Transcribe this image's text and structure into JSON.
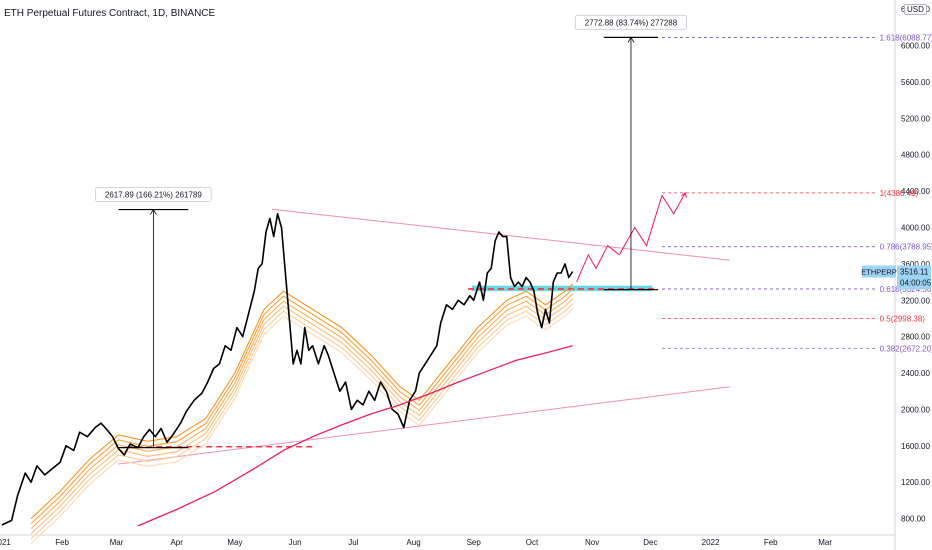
{
  "header": {
    "title": "ETH Perpetual Futures Contract, 1D, BINANCE",
    "currency": "USD"
  },
  "price_tag": {
    "symbol": "ETHPERP",
    "price": "3516.11",
    "countdown": "04:00:05",
    "color": "#9fd3f5"
  },
  "chart_data": {
    "type": "line",
    "title": "ETH Perpetual Futures Contract, 1D, BINANCE",
    "ylabel": "USD",
    "ylim": [
      620,
      6500
    ],
    "y_ticks": [
      800,
      1200,
      1600,
      2000,
      2400,
      2800,
      3200,
      3600,
      4000,
      4400,
      4800,
      5200,
      5600,
      6000,
      6400
    ],
    "y_tick_labels": [
      "800.00",
      "1200.00",
      "1600.00",
      "2000.00",
      "2400.00",
      "2800.00",
      "3200.00",
      "3600.00",
      "4000.00",
      "4400.00",
      "4800.00",
      "5200.00",
      "5600.00",
      "6000.00",
      "6400.00"
    ],
    "x_tick_labels": [
      "2021",
      "Feb",
      "Mar",
      "Apr",
      "May",
      "Jun",
      "Jul",
      "Aug",
      "Sep",
      "Oct",
      "Nov",
      "Dec",
      "2022",
      "Feb",
      "Mar"
    ],
    "x_tick_days": [
      0,
      31,
      59,
      90,
      120,
      151,
      181,
      212,
      243,
      273,
      304,
      334,
      365,
      396,
      424
    ],
    "xlim_days": [
      -1,
      460
    ],
    "grid": false,
    "series": [
      {
        "role": "price",
        "color": "#000000",
        "points": [
          [
            0,
            730
          ],
          [
            5,
            780
          ],
          [
            8,
            1050
          ],
          [
            12,
            1300
          ],
          [
            15,
            1200
          ],
          [
            18,
            1380
          ],
          [
            22,
            1280
          ],
          [
            26,
            1350
          ],
          [
            30,
            1420
          ],
          [
            33,
            1600
          ],
          [
            37,
            1550
          ],
          [
            40,
            1750
          ],
          [
            44,
            1700
          ],
          [
            48,
            1800
          ],
          [
            51,
            1850
          ],
          [
            54,
            1780
          ],
          [
            57,
            1700
          ],
          [
            60,
            1570
          ],
          [
            63,
            1500
          ],
          [
            66,
            1620
          ],
          [
            70,
            1580
          ],
          [
            73,
            1700
          ],
          [
            76,
            1780
          ],
          [
            79,
            1700
          ],
          [
            82,
            1790
          ],
          [
            85,
            1640
          ],
          [
            88,
            1720
          ],
          [
            92,
            1850
          ],
          [
            95,
            1980
          ],
          [
            99,
            2100
          ],
          [
            103,
            2180
          ],
          [
            106,
            2300
          ],
          [
            109,
            2450
          ],
          [
            112,
            2500
          ],
          [
            115,
            2700
          ],
          [
            118,
            2650
          ],
          [
            121,
            2900
          ],
          [
            124,
            2800
          ],
          [
            127,
            3050
          ],
          [
            130,
            3300
          ],
          [
            132,
            3550
          ],
          [
            134,
            3600
          ],
          [
            136,
            3950
          ],
          [
            138,
            4100
          ],
          [
            140,
            3900
          ],
          [
            142,
            4150
          ],
          [
            144,
            4000
          ],
          [
            146,
            3500
          ],
          [
            148,
            3000
          ],
          [
            150,
            2500
          ],
          [
            152,
            2650
          ],
          [
            154,
            2500
          ],
          [
            156,
            2900
          ],
          [
            158,
            2650
          ],
          [
            160,
            2700
          ],
          [
            163,
            2500
          ],
          [
            166,
            2700
          ],
          [
            168,
            2600
          ],
          [
            171,
            2400
          ],
          [
            174,
            2200
          ],
          [
            177,
            2300
          ],
          [
            180,
            2000
          ],
          [
            183,
            2100
          ],
          [
            186,
            2050
          ],
          [
            189,
            2200
          ],
          [
            192,
            2100
          ],
          [
            195,
            2300
          ],
          [
            198,
            2200
          ],
          [
            201,
            2000
          ],
          [
            204,
            1950
          ],
          [
            207,
            1800
          ],
          [
            210,
            2100
          ],
          [
            213,
            2200
          ],
          [
            215,
            2400
          ],
          [
            218,
            2500
          ],
          [
            221,
            2600
          ],
          [
            224,
            2700
          ],
          [
            226,
            2950
          ],
          [
            229,
            3150
          ],
          [
            232,
            3100
          ],
          [
            235,
            3200
          ],
          [
            238,
            3150
          ],
          [
            241,
            3250
          ],
          [
            243,
            3200
          ],
          [
            246,
            3400
          ],
          [
            248,
            3200
          ],
          [
            250,
            3500
          ],
          [
            252,
            3550
          ],
          [
            254,
            3850
          ],
          [
            256,
            3950
          ],
          [
            258,
            3900
          ],
          [
            260,
            3900
          ],
          [
            262,
            3450
          ],
          [
            264,
            3350
          ],
          [
            266,
            3400
          ],
          [
            268,
            3350
          ],
          [
            270,
            3450
          ],
          [
            272,
            3400
          ],
          [
            274,
            3300
          ],
          [
            276,
            3050
          ],
          [
            278,
            2900
          ],
          [
            280,
            3100
          ],
          [
            282,
            2950
          ],
          [
            284,
            3400
          ],
          [
            286,
            3500
          ],
          [
            288,
            3500
          ],
          [
            290,
            3600
          ],
          [
            292,
            3450
          ],
          [
            294,
            3516
          ]
        ]
      },
      {
        "role": "long-term moving average",
        "color": "#e91e63",
        "points": [
          [
            70,
            720
          ],
          [
            90,
            900
          ],
          [
            110,
            1100
          ],
          [
            130,
            1350
          ],
          [
            145,
            1550
          ],
          [
            160,
            1700
          ],
          [
            175,
            1830
          ],
          [
            190,
            1950
          ],
          [
            205,
            2050
          ],
          [
            220,
            2170
          ],
          [
            235,
            2300
          ],
          [
            250,
            2420
          ],
          [
            265,
            2540
          ],
          [
            280,
            2620
          ],
          [
            294,
            2700
          ]
        ]
      },
      {
        "role": "moving-average ribbon",
        "color": "#f7931e",
        "points": [
          [
            15,
            800
          ],
          [
            30,
            1100
          ],
          [
            45,
            1450
          ],
          [
            60,
            1720
          ],
          [
            75,
            1650
          ],
          [
            90,
            1700
          ],
          [
            105,
            1900
          ],
          [
            120,
            2400
          ],
          [
            135,
            3100
          ],
          [
            145,
            3300
          ],
          [
            160,
            3100
          ],
          [
            175,
            2900
          ],
          [
            190,
            2600
          ],
          [
            205,
            2250
          ],
          [
            215,
            2100
          ],
          [
            230,
            2500
          ],
          [
            245,
            2900
          ],
          [
            260,
            3200
          ],
          [
            270,
            3300
          ],
          [
            280,
            3150
          ],
          [
            290,
            3300
          ],
          [
            294,
            3380
          ]
        ]
      },
      {
        "role": "projection path",
        "color": "#e91e63",
        "points": [
          [
            296,
            3400
          ],
          [
            302,
            3700
          ],
          [
            306,
            3550
          ],
          [
            312,
            3800
          ],
          [
            318,
            3700
          ],
          [
            326,
            4000
          ],
          [
            332,
            3800
          ],
          [
            340,
            4350
          ],
          [
            346,
            4150
          ],
          [
            352,
            4380
          ]
        ]
      }
    ],
    "fibonacci_levels": [
      {
        "label": "1.618(6088.77)",
        "value": 6088.77,
        "color": "#7e57c2"
      },
      {
        "label": "1(4380.49)",
        "value": 4380.49,
        "color": "#f23645"
      },
      {
        "label": "0.786(3788.95)",
        "value": 3788.95,
        "color": "#7e57c2"
      },
      {
        "label": "0.618(3324.56)",
        "value": 3324.56,
        "color": "#7e57c2"
      },
      {
        "label": "0.5(2998.38)",
        "value": 2998.38,
        "color": "#f23645"
      },
      {
        "label": "0.382(2672.20)",
        "value": 2672.2,
        "color": "#7e57c2"
      }
    ],
    "fib_start_day": 340,
    "annotations": [
      {
        "text": "2617.89 (166.21%) 261789",
        "x_start": 60,
        "x_end": 96,
        "y_low": 1580,
        "y_high": 4197
      },
      {
        "text": "2772.88 (83.74%) 277288",
        "x_start": 310,
        "x_end": 338,
        "y_low": 3316,
        "y_high": 6089
      }
    ],
    "trendlines": [
      {
        "role": "upper",
        "color": "#f48fb1",
        "points": [
          [
            139,
            4200
          ],
          [
            375,
            3640
          ]
        ]
      },
      {
        "role": "lower",
        "color": "#f48fb1",
        "points": [
          [
            60,
            1400
          ],
          [
            375,
            2250
          ]
        ]
      }
    ],
    "horizontal_levels": [
      {
        "role": "support",
        "color": "#f23645",
        "value": 1590,
        "from": 64,
        "to": 160
      },
      {
        "role": "resistance",
        "color": "#f23645",
        "value": 3324,
        "from": 240,
        "to": 338
      }
    ],
    "zones": [
      {
        "color": "#00bcd4",
        "y_low": 3300,
        "y_high": 3360,
        "from": 242,
        "to": 335
      }
    ]
  }
}
